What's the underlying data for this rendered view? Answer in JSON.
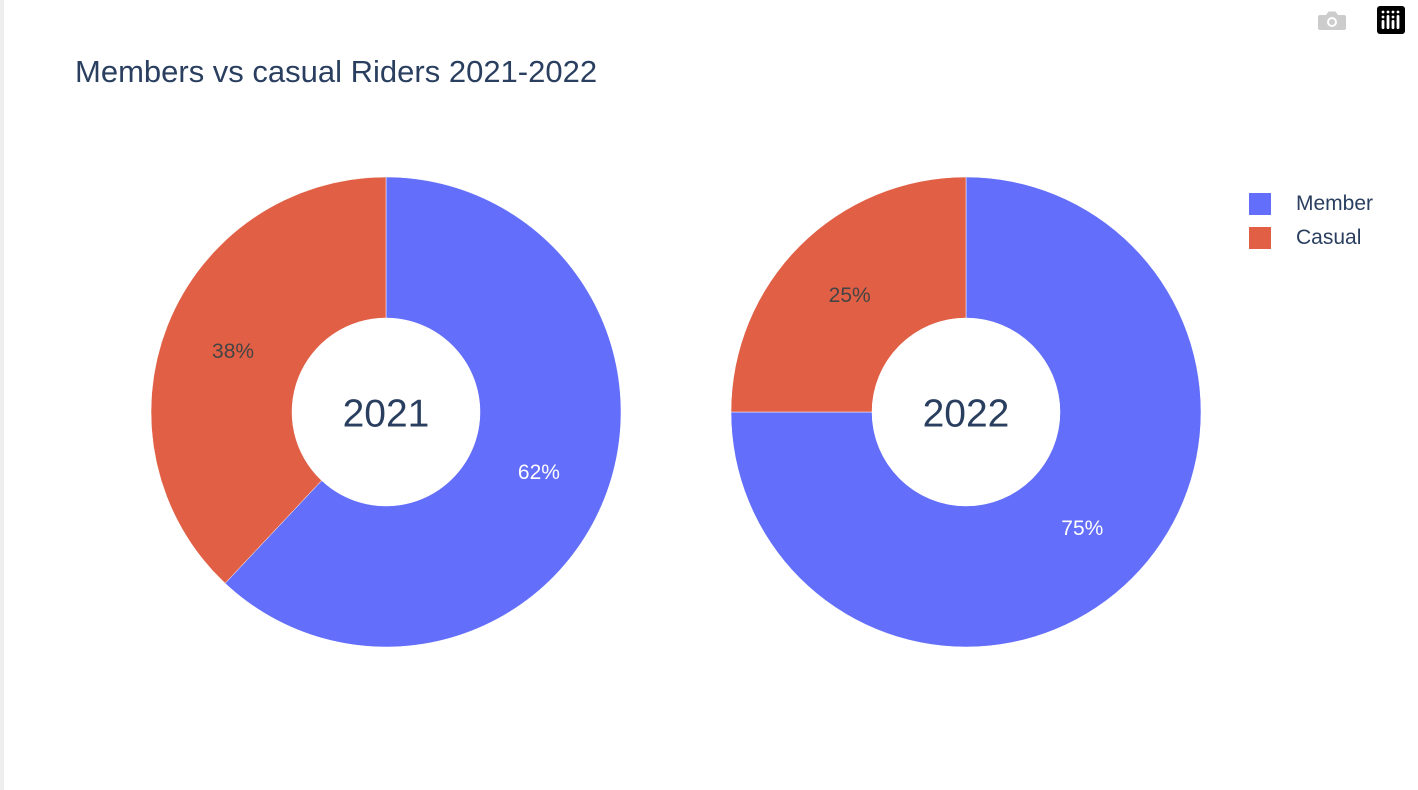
{
  "modebar": {
    "camera_icon": "camera-icon",
    "logo_icon": "plotly-logo-icon"
  },
  "colors": {
    "member": "#636efa",
    "casual": "#e05f45",
    "text_dark": "#2a3f5f",
    "label_light": "#ffffff",
    "label_dark": "#444444"
  },
  "chart_data": {
    "type": "pie",
    "title": "Members vs casual Riders 2021-2022",
    "hole": 0.4,
    "legend_position": "top-right",
    "legend": [
      {
        "name": "Member",
        "color": "#636efa"
      },
      {
        "name": "Casual",
        "color": "#e05f45"
      }
    ],
    "pies": [
      {
        "center_label": "2021",
        "slices": [
          {
            "name": "Member",
            "value": 62,
            "label": "62%",
            "color": "#636efa"
          },
          {
            "name": "Casual",
            "value": 38,
            "label": "38%",
            "color": "#e05f45"
          }
        ]
      },
      {
        "center_label": "2022",
        "slices": [
          {
            "name": "Member",
            "value": 75,
            "label": "75%",
            "color": "#636efa"
          },
          {
            "name": "Casual",
            "value": 25,
            "label": "25%",
            "color": "#e05f45"
          }
        ]
      }
    ]
  }
}
